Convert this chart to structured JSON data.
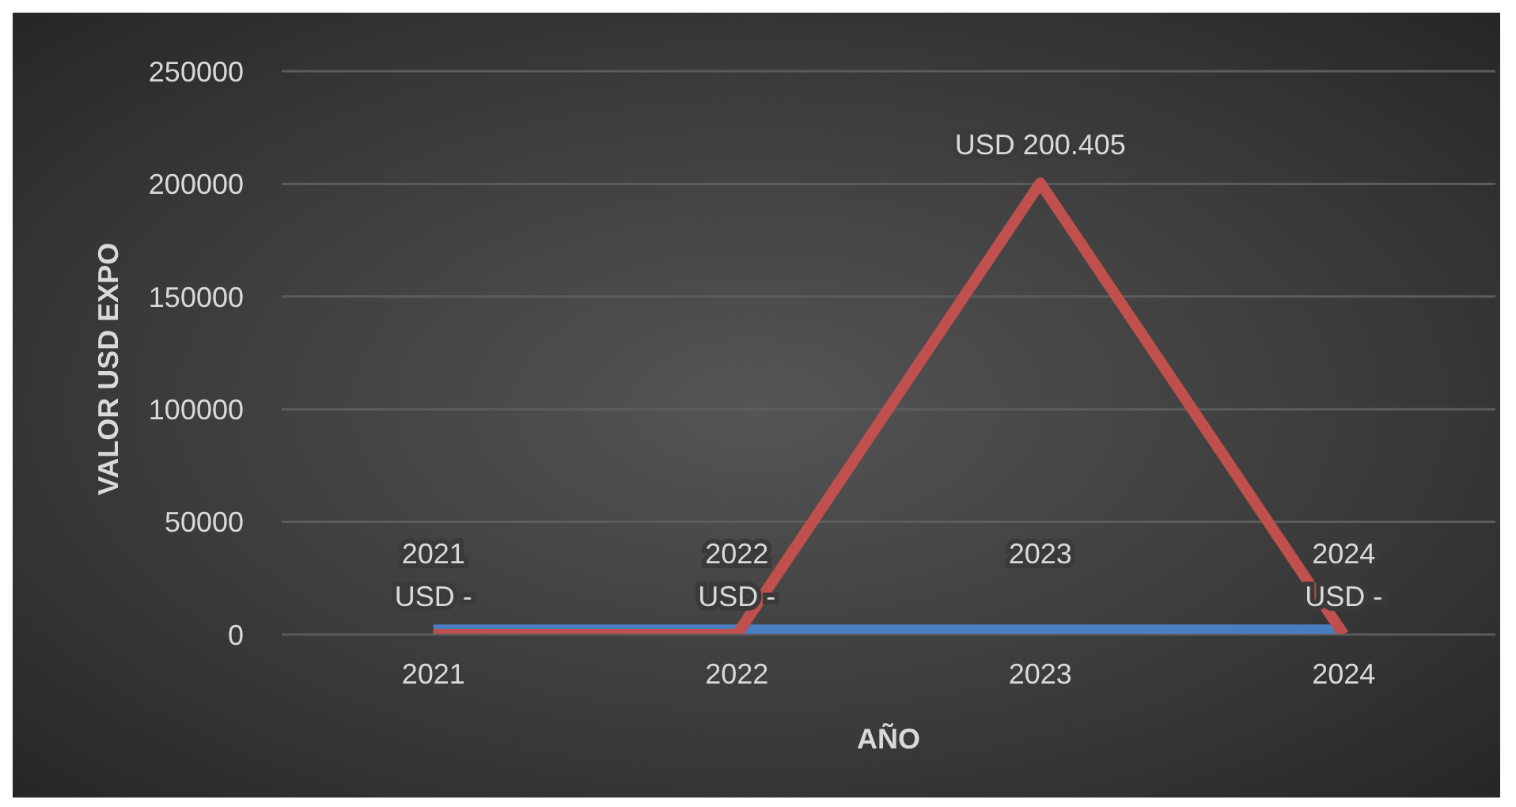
{
  "chart_data": {
    "type": "line",
    "xlabel": "AÑO",
    "ylabel": "VALOR USD EXPO",
    "categories": [
      "2021",
      "2022",
      "2023",
      "2024"
    ],
    "series": [
      {
        "color": "#4a7ebf",
        "values": [
          2021,
          2022,
          2023,
          2024
        ]
      },
      {
        "color": "#c0504d",
        "values": [
          0,
          0,
          200405,
          0
        ],
        "value_labels": [
          "USD -",
          "USD -",
          "USD 200.405",
          "USD -"
        ]
      }
    ],
    "ylim": [
      0,
      250000
    ],
    "yticks": [
      0,
      50000,
      100000,
      150000,
      200000,
      250000
    ],
    "grid": "y",
    "legend": false,
    "data_labels": true,
    "marker": "none",
    "line_style": "solid"
  }
}
